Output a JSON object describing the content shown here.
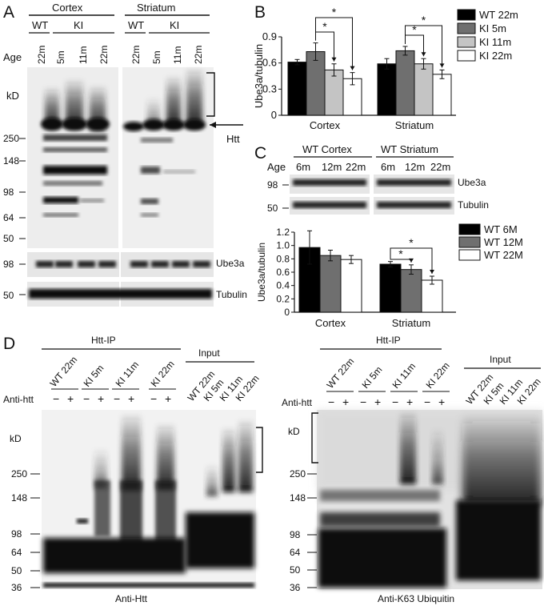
{
  "panels": {
    "A": {
      "letter": "A",
      "groups": [
        "Cortex",
        "Striatum"
      ],
      "genotype_wt": "WT",
      "genotype_ki": "KI",
      "age_label": "Age",
      "lane_ages": [
        "22m",
        "5m",
        "11m",
        "22m"
      ],
      "kd_label": "kD",
      "markers": [
        "250",
        "148",
        "98",
        "64",
        "50"
      ],
      "ube3a_marker": "98",
      "tubulin_marker": "50",
      "htt_arrow_label": "Htt",
      "blot_labels": [
        "Ube3a",
        "Tubulin"
      ]
    },
    "B": {
      "letter": "B",
      "ylabel": "Ube3a/tubulin",
      "legend": [
        "WT 22m",
        "KI 5m",
        "KI 11m",
        "KI 22m"
      ],
      "significance": "*"
    },
    "C": {
      "letter": "C",
      "groups": [
        "WT Cortex",
        "WT Striatum"
      ],
      "age_label": "Age",
      "lane_ages": [
        "6m",
        "12m",
        "22m"
      ],
      "markers": [
        "98",
        "50"
      ],
      "blot_labels": [
        "Ube3a",
        "Tubulin"
      ],
      "ylabel": "Ube3a/tubulin",
      "legend": [
        "WT 6M",
        "WT 12M",
        "WT 22M"
      ],
      "significance": "*"
    },
    "D": {
      "letter": "D",
      "ip_label": "Htt-IP",
      "input_label": "Input",
      "ip_lanes": [
        "WT 22m",
        "KI 5m",
        "KI 11m",
        "KI 22m"
      ],
      "input_lanes": [
        "WT 22m",
        "KI 5m",
        "KI 11m",
        "KI 22m"
      ],
      "antibody_label": "Anti-htt",
      "minus": "−",
      "plus": "+",
      "kd_label": "kD",
      "markers": [
        "250",
        "148",
        "98",
        "64",
        "50",
        "36"
      ],
      "left_caption": "Anti-Htt",
      "right_caption": "Anti-K63 Ubiquitin"
    }
  },
  "chart_data": [
    {
      "type": "bar",
      "panel": "B",
      "categories": [
        "Cortex",
        "Striatum"
      ],
      "series": [
        {
          "name": "WT 22m",
          "values": [
            0.61,
            0.59
          ],
          "errors": [
            0.03,
            0.06
          ],
          "color": "#000000"
        },
        {
          "name": "KI 5m",
          "values": [
            0.73,
            0.74
          ],
          "errors": [
            0.1,
            0.05
          ],
          "color": "#6f6f6f"
        },
        {
          "name": "KI 11m",
          "values": [
            0.52,
            0.59
          ],
          "errors": [
            0.07,
            0.06
          ],
          "color": "#c4c4c4"
        },
        {
          "name": "KI 22m",
          "values": [
            0.42,
            0.47
          ],
          "errors": [
            0.07,
            0.05
          ],
          "color": "#ffffff"
        }
      ],
      "xlabel": "",
      "ylabel": "Ube3a/tubulin",
      "ylim": [
        0,
        0.9
      ],
      "yticks": [
        0,
        0.3,
        0.6,
        0.9
      ],
      "ytick_labels": [
        "0",
        "0.3",
        "0.6",
        "0.9"
      ],
      "legend_position": "right",
      "grid": false
    },
    {
      "type": "bar",
      "panel": "C",
      "categories": [
        "Cortex",
        "Striatum"
      ],
      "series": [
        {
          "name": "WT 6M",
          "values": [
            0.97,
            0.72
          ],
          "errors": [
            0.25,
            0.04
          ],
          "color": "#000000"
        },
        {
          "name": "WT 12M",
          "values": [
            0.85,
            0.64
          ],
          "errors": [
            0.08,
            0.07
          ],
          "color": "#6f6f6f"
        },
        {
          "name": "WT 22M",
          "values": [
            0.79,
            0.48
          ],
          "errors": [
            0.06,
            0.06
          ],
          "color": "#ffffff"
        }
      ],
      "xlabel": "",
      "ylabel": "Ube3a/tubulin",
      "ylim": [
        0,
        1.2
      ],
      "yticks": [
        0,
        0.2,
        0.4,
        0.6,
        0.8,
        1.0,
        1.2
      ],
      "ytick_labels": [
        "0",
        "0.2",
        "0.4",
        "0.6",
        "0.8",
        "1.0",
        "1.2"
      ],
      "legend_position": "top-right",
      "grid": false
    }
  ]
}
